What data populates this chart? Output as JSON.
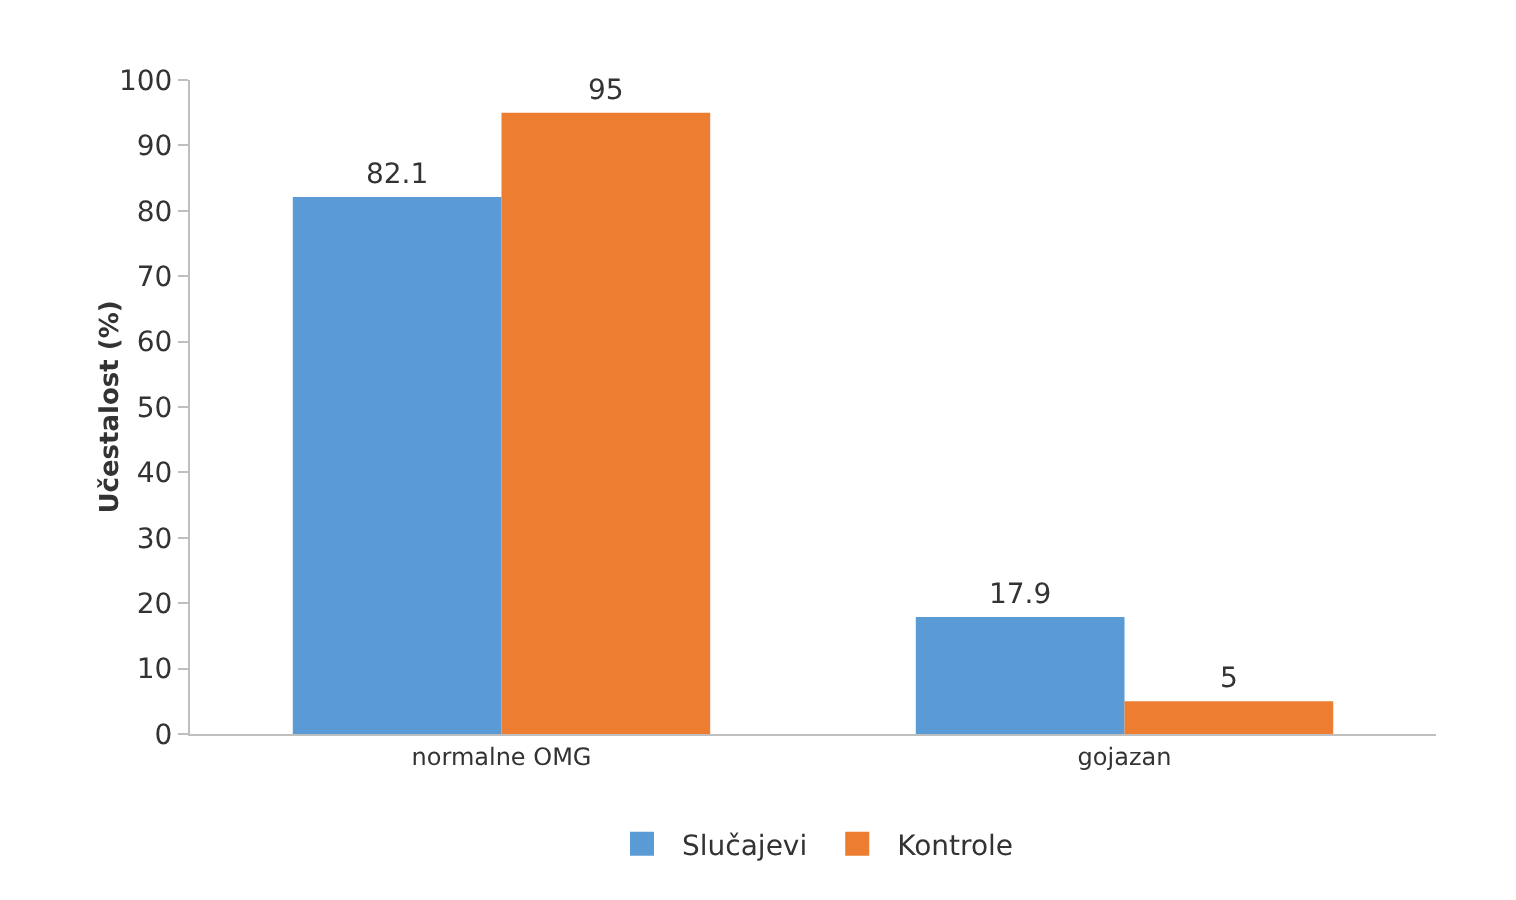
{
  "chart_data": {
    "type": "bar",
    "ylabel": "Učestalost (%)",
    "categories": [
      "normalne OMG",
      "gojazan"
    ],
    "series": [
      {
        "name": "Slučajevi",
        "color": "#5b9bd5",
        "values": [
          82.1,
          17.9
        ]
      },
      {
        "name": "Kontrole",
        "color": "#ed7d31",
        "values": [
          95,
          5
        ]
      }
    ],
    "ylim": [
      0,
      100
    ],
    "yticks": [
      0,
      10,
      20,
      30,
      40,
      50,
      60,
      70,
      80,
      90,
      100
    ],
    "grid": false,
    "legend": "bottom",
    "data_labels": true
  }
}
